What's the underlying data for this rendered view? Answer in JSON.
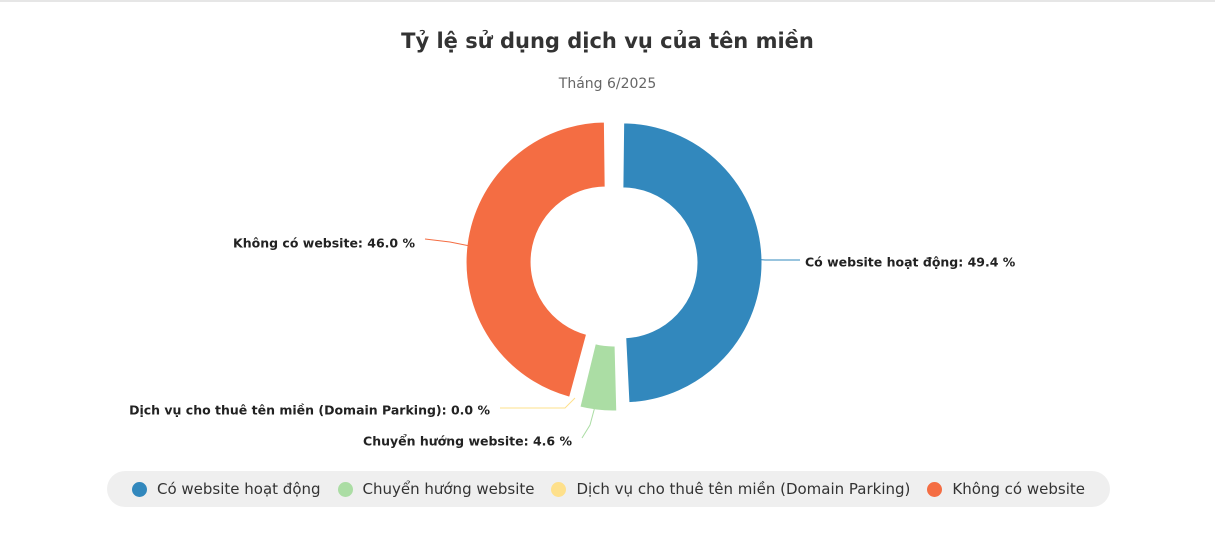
{
  "chart_data": {
    "type": "pie",
    "variant": "donut",
    "title": "Tỷ lệ sử dụng dịch vụ của tên miền",
    "subtitle": "Tháng 6/2025",
    "unit": "%",
    "legend_position": "bottom",
    "slices": [
      {
        "name": "Có website hoạt động",
        "value": 49.4,
        "label": "Có website hoạt động: 49.4 %",
        "color": "#3288bd"
      },
      {
        "name": "Chuyển hướng website",
        "value": 4.6,
        "label": "Chuyển hướng website: 4.6 %",
        "color": "#abdda4"
      },
      {
        "name": "Dịch vụ cho thuê tên miền (Domain Parking)",
        "value": 0.0,
        "label": "Dịch vụ cho thuê tên miền (Domain Parking): 0.0 %",
        "color": "#fee08b"
      },
      {
        "name": "Không có website",
        "value": 46.0,
        "label": "Không có website: 46.0 %",
        "color": "#f46d43"
      }
    ]
  }
}
